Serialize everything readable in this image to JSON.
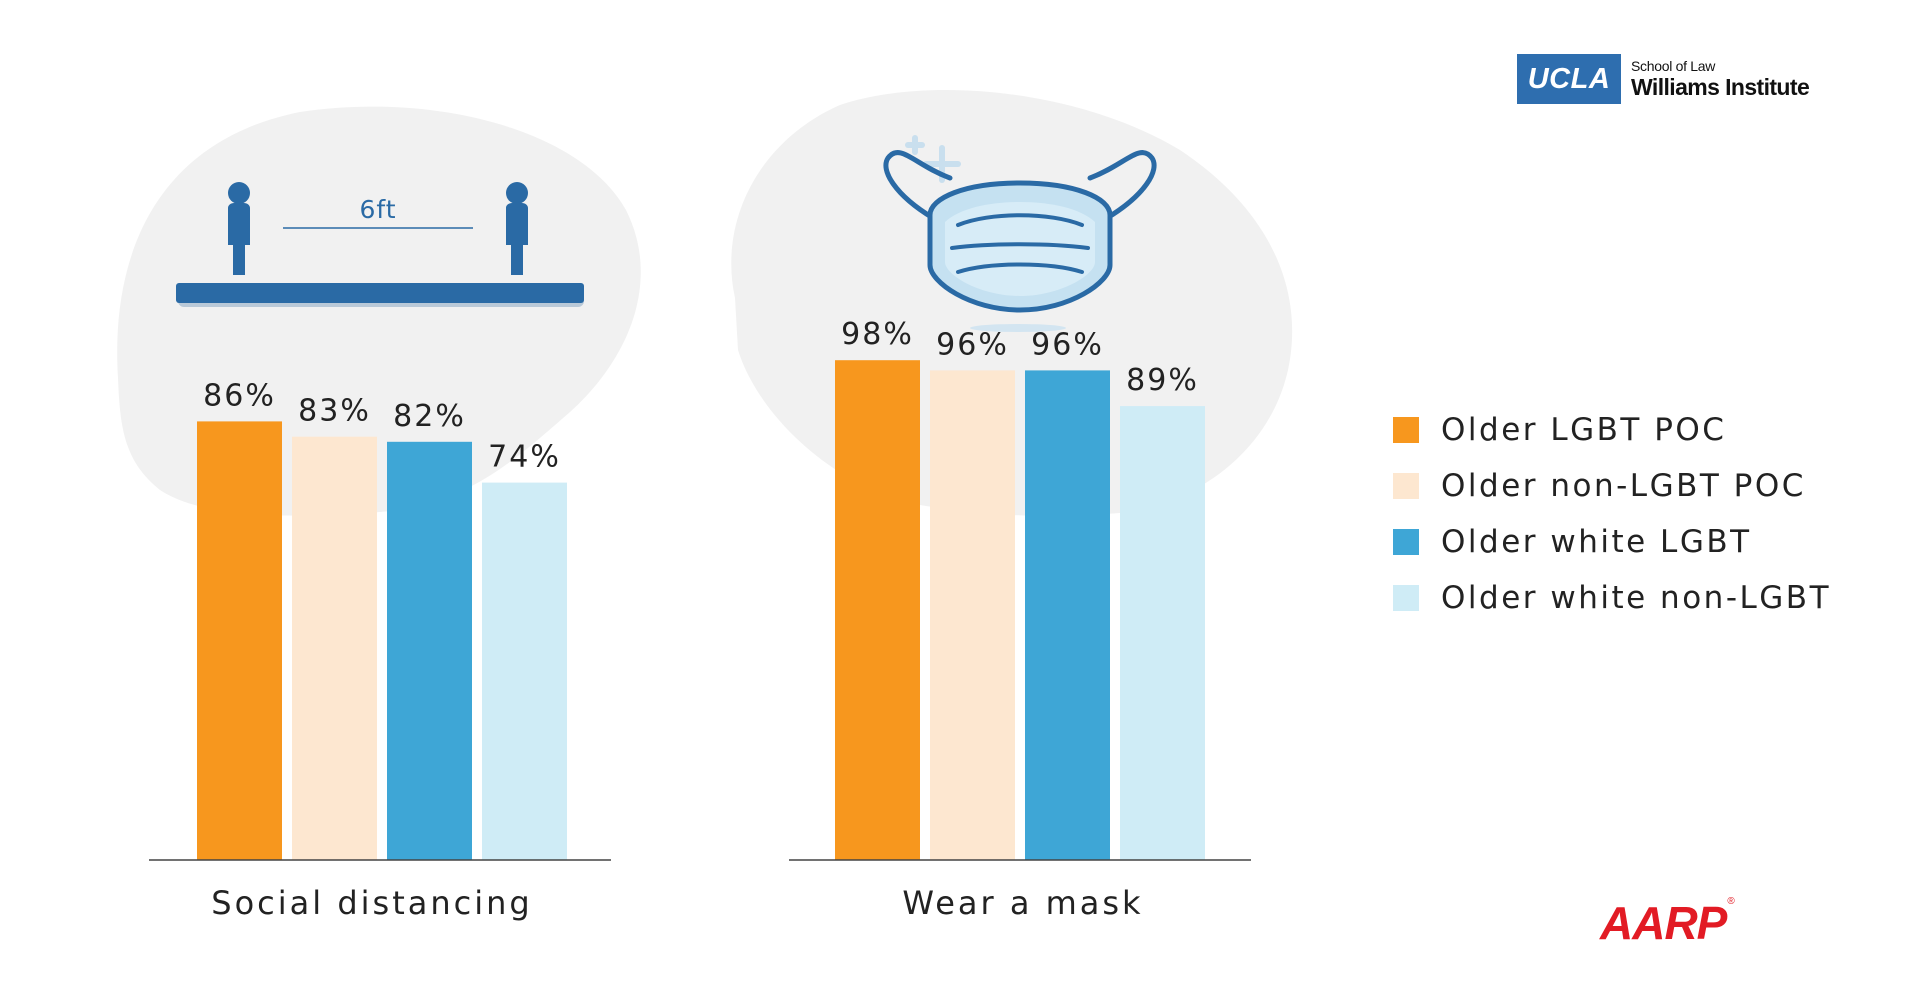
{
  "chart_data": [
    {
      "type": "bar",
      "xlabel": "Social distancing",
      "categories": [
        "Older LGBT POC",
        "Older non-LGBT POC",
        "Older white LGBT",
        "Older white non-LGBT"
      ],
      "values": [
        86,
        83,
        82,
        74
      ],
      "value_labels": [
        "86%",
        "83%",
        "82%",
        "74%"
      ],
      "ylim": [
        0,
        100
      ],
      "grid": false
    },
    {
      "type": "bar",
      "xlabel": "Wear a mask",
      "categories": [
        "Older LGBT POC",
        "Older non-LGBT POC",
        "Older white LGBT",
        "Older white non-LGBT"
      ],
      "values": [
        98,
        96,
        96,
        89
      ],
      "value_labels": [
        "98%",
        "96%",
        "96%",
        "89%"
      ],
      "ylim": [
        0,
        100
      ],
      "grid": false
    }
  ],
  "legend": {
    "placement": "right",
    "items": [
      {
        "label": "Older LGBT POC",
        "color": "#f7971e"
      },
      {
        "label": "Older non-LGBT POC",
        "color": "#fde7d0"
      },
      {
        "label": "Older white LGBT",
        "color": "#3ea6d6"
      },
      {
        "label": "Older white non-LGBT",
        "color": "#cfecf6"
      }
    ]
  },
  "illustrations": {
    "distance_label": "6ft",
    "distance_icons": [
      "person-icon",
      "person-icon",
      "ruler-line-icon"
    ],
    "mask_icon": "face-mask-icon",
    "sparkle_icon": "plus-sparkle-icon"
  },
  "logos": {
    "ucla_box": "UCLA",
    "school_of_law": "School of Law",
    "institute": "Williams Institute",
    "aarp": "AARP",
    "aarp_mark": "®"
  },
  "colors": {
    "blob": "#f1f1f1",
    "icon_blue": "#2a6aa5",
    "axis": "#444444"
  }
}
